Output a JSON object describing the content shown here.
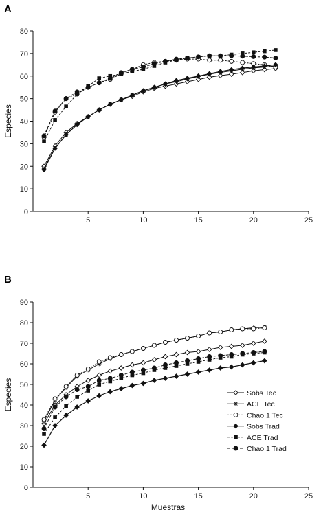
{
  "chart_data": [
    {
      "panel": "A",
      "type": "line",
      "xlabel": "",
      "ylabel": "Especies",
      "xlim": [
        0,
        25
      ],
      "ylim": [
        0,
        80
      ],
      "xticks": [
        5,
        10,
        15,
        20,
        25
      ],
      "yticks": [
        0,
        10,
        20,
        30,
        40,
        50,
        60,
        70,
        80
      ],
      "grid": false,
      "series": [
        {
          "key": "sobs_tec",
          "x": [
            1,
            2,
            3,
            4,
            5,
            6,
            7,
            8,
            9,
            10,
            11,
            12,
            13,
            14,
            15,
            16,
            17,
            18,
            19,
            20,
            21,
            22
          ],
          "values": [
            20,
            29,
            35,
            39,
            42,
            45,
            47.5,
            49.5,
            51,
            53,
            54.5,
            55.5,
            56.5,
            57.5,
            58.5,
            59.5,
            60.2,
            60.8,
            61.5,
            62.3,
            62.8,
            63.3
          ]
        },
        {
          "key": "ace_tec",
          "x": [
            1,
            2,
            3,
            4,
            5,
            6,
            7,
            8,
            9,
            10,
            11,
            12,
            13,
            14,
            15,
            16,
            17,
            18,
            19,
            20,
            21,
            22
          ],
          "values": [
            19,
            28,
            34,
            38.5,
            42,
            45,
            47.5,
            49.5,
            51.5,
            53.5,
            55,
            56.5,
            57.5,
            58.7,
            59.8,
            60.8,
            61.6,
            62.3,
            63,
            63.6,
            64,
            64.5
          ]
        },
        {
          "key": "chao1_tec",
          "x": [
            1,
            2,
            3,
            4,
            5,
            6,
            7,
            8,
            9,
            10,
            11,
            12,
            13,
            14,
            15,
            16,
            17,
            18,
            19,
            20,
            21,
            22
          ],
          "values": [
            33,
            44,
            50,
            52,
            55,
            57,
            58.5,
            61,
            63,
            65,
            66,
            66.5,
            67,
            67.5,
            67.5,
            67,
            67,
            66.5,
            66,
            65.5,
            65,
            64
          ]
        },
        {
          "key": "sobs_trad",
          "x": [
            1,
            2,
            3,
            4,
            5,
            6,
            7,
            8,
            9,
            10,
            11,
            12,
            13,
            14,
            15,
            16,
            17,
            18,
            19,
            20,
            21,
            22
          ],
          "values": [
            18.5,
            28,
            34,
            38.5,
            42,
            45,
            47.5,
            49.5,
            51.5,
            53.5,
            55,
            56.5,
            58,
            59,
            60,
            61,
            62,
            62.8,
            63.5,
            64,
            64.5,
            65
          ]
        },
        {
          "key": "ace_trad",
          "x": [
            1,
            2,
            3,
            4,
            5,
            6,
            7,
            8,
            9,
            10,
            11,
            12,
            13,
            14,
            15,
            16,
            17,
            18,
            19,
            20,
            21,
            22
          ],
          "values": [
            31,
            40.5,
            46.5,
            52,
            55.5,
            59,
            60,
            61,
            62,
            63,
            64.5,
            66,
            67,
            68,
            68.5,
            69,
            69,
            69.5,
            70,
            70.5,
            71,
            71.5
          ]
        },
        {
          "key": "chao1_trad",
          "x": [
            1,
            2,
            3,
            4,
            5,
            6,
            7,
            8,
            9,
            10,
            11,
            12,
            13,
            14,
            15,
            16,
            17,
            18,
            19,
            20,
            21,
            22
          ],
          "values": [
            33.5,
            44.5,
            50,
            53,
            55,
            57,
            59,
            61.5,
            63,
            64,
            65.5,
            66.5,
            67.5,
            68,
            68.5,
            69,
            69,
            69,
            68.8,
            68.6,
            68.4,
            68
          ]
        }
      ]
    },
    {
      "panel": "B",
      "type": "line",
      "xlabel": "Muestras",
      "ylabel": "Especies",
      "xlim": [
        0,
        25
      ],
      "ylim": [
        0,
        90
      ],
      "xticks": [
        5,
        10,
        15,
        20,
        25
      ],
      "yticks": [
        0,
        10,
        20,
        30,
        40,
        50,
        60,
        70,
        80,
        90
      ],
      "grid": false,
      "legend_position": "bottom-right",
      "series": [
        {
          "key": "sobs_tec",
          "name": "Sobs Tec",
          "x": [
            1,
            2,
            3,
            4,
            5,
            6,
            7,
            8,
            9,
            10,
            11,
            12,
            13,
            14,
            15,
            16,
            17,
            18,
            19,
            20,
            21
          ],
          "values": [
            31,
            40,
            45,
            49,
            52,
            54.5,
            56.5,
            58,
            59.5,
            60.5,
            62,
            63.5,
            64.5,
            65.5,
            66,
            67,
            68,
            68.5,
            69,
            70,
            71
          ]
        },
        {
          "key": "ace_tec",
          "name": "ACE Tec",
          "x": [
            1,
            2,
            3,
            4,
            5,
            6,
            7,
            8,
            9,
            10,
            11,
            12,
            13,
            14,
            15,
            16,
            17,
            18,
            19,
            20,
            21
          ],
          "values": [
            32,
            42.5,
            48.5,
            54,
            57,
            60,
            62.5,
            64.5,
            66,
            67.5,
            69,
            70.5,
            71.5,
            72.5,
            73.5,
            75,
            75.5,
            76.5,
            77,
            77.5,
            77.8
          ]
        },
        {
          "key": "chao1_tec",
          "name": "Chao 1 Tec",
          "x": [
            1,
            2,
            3,
            4,
            5,
            6,
            7,
            8,
            9,
            10,
            11,
            12,
            13,
            14,
            15,
            16,
            17,
            18,
            19,
            20,
            21
          ],
          "values": [
            33,
            43,
            49,
            54.5,
            57.5,
            61,
            63,
            64.5,
            66,
            67.5,
            69,
            70.5,
            71.5,
            72.5,
            73.5,
            75,
            75.5,
            76.5,
            77,
            77,
            77.5
          ]
        },
        {
          "key": "sobs_trad",
          "name": "Sobs Trad",
          "x": [
            1,
            2,
            3,
            4,
            5,
            6,
            7,
            8,
            9,
            10,
            11,
            12,
            13,
            14,
            15,
            16,
            17,
            18,
            19,
            20,
            21
          ],
          "values": [
            20.5,
            30,
            35,
            39,
            42,
            44.5,
            46.5,
            48,
            49.5,
            50.5,
            52,
            53,
            54,
            55,
            56,
            57,
            58,
            58.5,
            59.5,
            60.5,
            61.5
          ]
        },
        {
          "key": "ace_trad",
          "name": "ACE Trad",
          "x": [
            1,
            2,
            3,
            4,
            5,
            6,
            7,
            8,
            9,
            10,
            11,
            12,
            13,
            14,
            15,
            16,
            17,
            18,
            19,
            20,
            21
          ],
          "values": [
            26,
            34,
            39.5,
            44,
            47,
            50,
            51.5,
            53,
            54.5,
            55.5,
            57,
            58,
            59,
            60,
            61,
            62,
            63,
            63.5,
            64.5,
            65,
            65.5
          ]
        },
        {
          "key": "chao1_trad",
          "name": "Chao 1 Trad",
          "x": [
            1,
            2,
            3,
            4,
            5,
            6,
            7,
            8,
            9,
            10,
            11,
            12,
            13,
            14,
            15,
            16,
            17,
            18,
            19,
            20,
            21
          ],
          "values": [
            28.5,
            39,
            44,
            47.5,
            49,
            52,
            53,
            54.5,
            56,
            57,
            58,
            59.5,
            60.5,
            61.5,
            62.5,
            63.5,
            64,
            64.5,
            65,
            65.5,
            66
          ]
        }
      ]
    }
  ]
}
